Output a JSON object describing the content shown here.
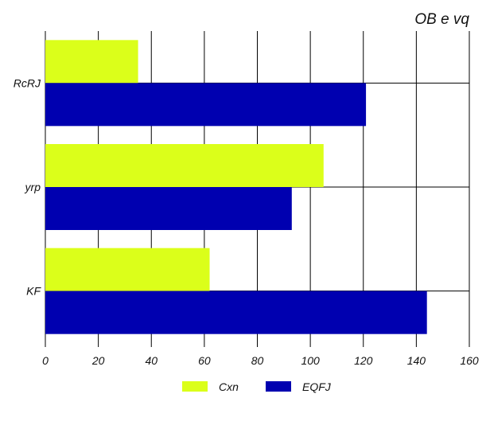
{
  "chart_data": {
    "type": "bar",
    "orientation": "horizontal",
    "title": "OB  e  vq",
    "categories": [
      "RcRJ",
      "yrp",
      "KF"
    ],
    "series": [
      {
        "name": "Cxn",
        "color": "#dbff1a",
        "values": [
          35,
          105,
          62
        ]
      },
      {
        "name": "EQFJ",
        "color": "#0000b0",
        "values": [
          121,
          93,
          144
        ]
      }
    ],
    "xlim": [
      0,
      160
    ],
    "xticks": [
      "0",
      "20",
      "40",
      "60",
      "80",
      "100",
      "120",
      "140",
      "160"
    ],
    "grid": true,
    "legend_position": "bottom-center"
  }
}
